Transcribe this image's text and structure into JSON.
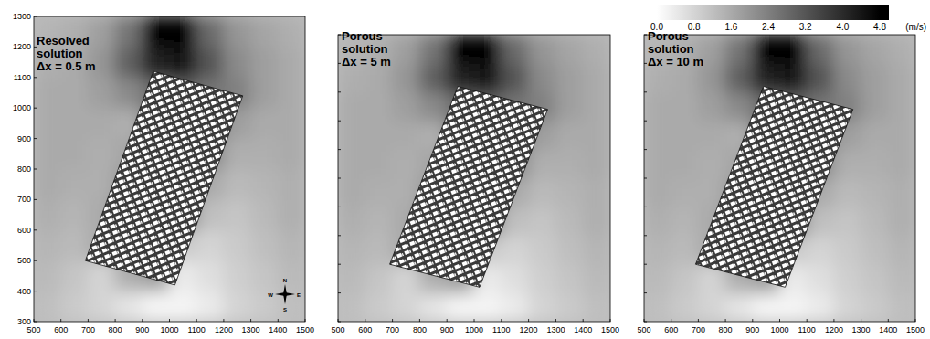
{
  "chart_data": [
    {
      "type": "contour",
      "title": "Resolved solution",
      "subtitle": "Δx = 0.5 m",
      "xlim": [
        500,
        1500
      ],
      "ylim": [
        300,
        1300
      ],
      "xticks": [
        500,
        600,
        700,
        800,
        900,
        1000,
        1100,
        1200,
        1300,
        1400,
        1500
      ],
      "yticks": [
        300,
        400,
        500,
        600,
        700,
        800,
        900,
        1000,
        1100,
        1200,
        1300
      ],
      "tick_labels": true,
      "compass": [
        "N",
        "E",
        "S",
        "W"
      ],
      "x_edges": [
        500,
        600,
        700,
        800,
        900,
        1000,
        1100,
        1200,
        1300,
        1400,
        1500
      ],
      "y_edges": [
        300,
        400,
        500,
        600,
        700,
        800,
        900,
        1000,
        1100,
        1200,
        1300
      ],
      "cells": [
        [
          1.2,
          1.0,
          0.8,
          0.5,
          0.2,
          0.2,
          0.4,
          0.8,
          1.0,
          1.2
        ],
        [
          1.3,
          1.1,
          0.8,
          1.5,
          1.8,
          0.4,
          0.6,
          0.9,
          1.1,
          1.3
        ],
        [
          1.4,
          1.3,
          1.6,
          2.4,
          2.6,
          1.0,
          0.8,
          1.0,
          1.2,
          1.4
        ],
        [
          1.5,
          1.4,
          1.6,
          2.6,
          2.8,
          2.4,
          1.2,
          1.1,
          1.3,
          1.5
        ],
        [
          1.6,
          1.5,
          1.5,
          2.0,
          2.8,
          2.8,
          1.6,
          1.3,
          1.4,
          1.5
        ],
        [
          1.6,
          1.6,
          1.5,
          1.7,
          2.8,
          2.9,
          2.2,
          1.5,
          1.5,
          1.6
        ],
        [
          1.6,
          1.6,
          1.6,
          1.5,
          2.6,
          2.9,
          2.6,
          1.8,
          1.6,
          1.6
        ],
        [
          1.6,
          1.6,
          1.8,
          2.2,
          2.8,
          3.0,
          2.6,
          2.4,
          1.8,
          1.6
        ],
        [
          1.5,
          1.6,
          2.0,
          3.0,
          4.2,
          4.4,
          3.2,
          2.2,
          1.8,
          1.6
        ],
        [
          1.4,
          1.5,
          1.8,
          2.6,
          4.8,
          4.8,
          2.8,
          2.0,
          1.7,
          1.5
        ]
      ],
      "district": [
        [
          940,
          1120
        ],
        [
          1270,
          1040
        ],
        [
          1020,
          420
        ],
        [
          690,
          500
        ]
      ]
    },
    {
      "type": "contour",
      "title": "Porous solution",
      "subtitle": "Δx = 5 m",
      "xlim": [
        500,
        1500
      ],
      "ylim": [
        300,
        1300
      ],
      "xticks": [
        500,
        600,
        700,
        800,
        900,
        1000,
        1100,
        1200,
        1300,
        1400,
        1500
      ],
      "yticks": [
        300,
        400,
        500,
        600,
        700,
        800,
        900,
        1000,
        1100,
        1200,
        1300
      ],
      "tick_labels": "x",
      "x_edges": [
        500,
        600,
        700,
        800,
        900,
        1000,
        1100,
        1200,
        1300,
        1400,
        1500
      ],
      "y_edges": [
        300,
        400,
        500,
        600,
        700,
        800,
        900,
        1000,
        1100,
        1200,
        1300
      ],
      "cells": [
        [
          1.2,
          1.0,
          0.8,
          0.5,
          0.2,
          0.2,
          0.4,
          0.8,
          1.0,
          1.2
        ],
        [
          1.3,
          1.1,
          0.8,
          1.5,
          1.8,
          0.4,
          0.6,
          0.9,
          1.1,
          1.3
        ],
        [
          1.4,
          1.3,
          1.6,
          2.4,
          2.6,
          1.0,
          0.8,
          1.0,
          1.2,
          1.4
        ],
        [
          1.5,
          1.4,
          1.6,
          2.6,
          2.8,
          2.4,
          1.2,
          1.1,
          1.3,
          1.5
        ],
        [
          1.6,
          1.5,
          1.5,
          2.0,
          2.8,
          2.8,
          1.6,
          1.3,
          1.4,
          1.5
        ],
        [
          1.6,
          1.6,
          1.5,
          1.7,
          2.8,
          2.9,
          2.2,
          1.5,
          1.5,
          1.6
        ],
        [
          1.6,
          1.6,
          1.6,
          1.5,
          2.6,
          2.9,
          2.6,
          1.8,
          1.6,
          1.6
        ],
        [
          1.6,
          1.6,
          1.8,
          2.2,
          2.8,
          3.0,
          2.6,
          2.4,
          1.8,
          1.6
        ],
        [
          1.5,
          1.6,
          2.0,
          3.0,
          4.2,
          4.4,
          3.2,
          2.2,
          1.8,
          1.6
        ],
        [
          1.4,
          1.5,
          1.8,
          2.6,
          4.8,
          4.8,
          2.8,
          2.0,
          1.7,
          1.5
        ]
      ],
      "district": [
        [
          940,
          1120
        ],
        [
          1270,
          1040
        ],
        [
          1020,
          420
        ],
        [
          690,
          500
        ]
      ]
    },
    {
      "type": "contour",
      "title": "Porous solution",
      "subtitle": "Δx = 10 m",
      "xlim": [
        500,
        1500
      ],
      "ylim": [
        300,
        1300
      ],
      "xticks": [
        500,
        600,
        700,
        800,
        900,
        1000,
        1100,
        1200,
        1300,
        1400,
        1500
      ],
      "yticks": [
        300,
        400,
        500,
        600,
        700,
        800,
        900,
        1000,
        1100,
        1200,
        1300
      ],
      "tick_labels": "x",
      "x_edges": [
        500,
        600,
        700,
        800,
        900,
        1000,
        1100,
        1200,
        1300,
        1400,
        1500
      ],
      "y_edges": [
        300,
        400,
        500,
        600,
        700,
        800,
        900,
        1000,
        1100,
        1200,
        1300
      ],
      "cells": [
        [
          1.2,
          1.0,
          0.8,
          0.5,
          0.2,
          0.2,
          0.4,
          0.8,
          1.0,
          1.2
        ],
        [
          1.3,
          1.1,
          0.8,
          1.5,
          1.8,
          0.4,
          0.6,
          0.9,
          1.1,
          1.3
        ],
        [
          1.4,
          1.3,
          1.6,
          2.4,
          2.6,
          1.0,
          0.8,
          1.0,
          1.2,
          1.4
        ],
        [
          1.5,
          1.4,
          1.6,
          2.6,
          2.8,
          2.4,
          1.2,
          1.1,
          1.3,
          1.5
        ],
        [
          1.6,
          1.5,
          1.5,
          2.0,
          2.8,
          2.8,
          1.6,
          1.3,
          1.4,
          1.5
        ],
        [
          1.6,
          1.6,
          1.5,
          1.7,
          2.8,
          2.9,
          2.2,
          1.5,
          1.5,
          1.6
        ],
        [
          1.6,
          1.6,
          1.6,
          1.5,
          2.6,
          2.9,
          2.6,
          1.8,
          1.6,
          1.6
        ],
        [
          1.6,
          1.6,
          1.8,
          2.2,
          2.8,
          3.0,
          2.6,
          2.4,
          1.8,
          1.6
        ],
        [
          1.5,
          1.6,
          2.0,
          3.0,
          4.2,
          4.4,
          3.2,
          2.2,
          1.8,
          1.6
        ],
        [
          1.4,
          1.5,
          1.8,
          2.6,
          4.8,
          4.8,
          2.8,
          2.0,
          1.7,
          1.5
        ]
      ],
      "district": [
        [
          940,
          1120
        ],
        [
          1270,
          1040
        ],
        [
          1020,
          420
        ],
        [
          690,
          500
        ]
      ]
    }
  ],
  "colorbar": {
    "range": [
      0,
      4.8
    ],
    "ticks": [
      {
        "value": 0,
        "label": "0.0"
      },
      0.8,
      1.6,
      2.4,
      3.2,
      {
        "value": 4,
        "label": "4.0"
      },
      4.8
    ],
    "unit": "(m/s)"
  }
}
